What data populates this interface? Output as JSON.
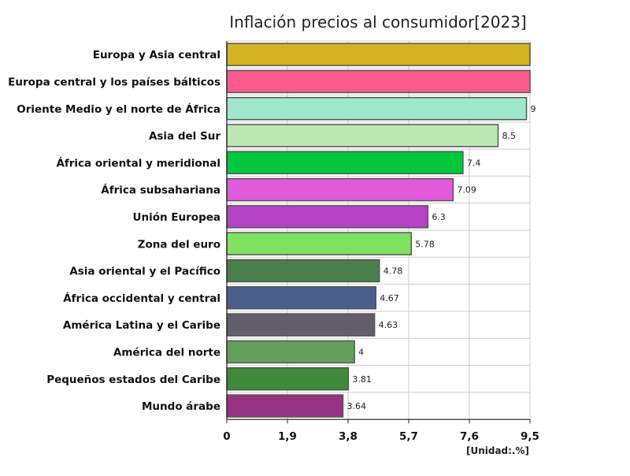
{
  "chart_data": {
    "type": "bar",
    "orientation": "horizontal",
    "title": "Inflación precios al consumidor[2023]",
    "unit_label": "[Unidad:.%]",
    "xlim": [
      0,
      9.5
    ],
    "x_ticks": [
      "0",
      "1,9",
      "3,8",
      "5,7",
      "7,6",
      "9,5"
    ],
    "x_tick_values": [
      0,
      1.9,
      3.8,
      5.7,
      7.6,
      9.5
    ],
    "grid": true,
    "categories": [
      "Europa y Asia central",
      "Europa central y los países bálticos",
      "Oriente Medio y el norte de África",
      "Asia del Sur",
      "África oriental y meridional",
      "África subsahariana",
      "Unión Europea",
      "Zona del euro",
      "Asia oriental y el Pacífico",
      "África occidental y central",
      "América Latina y el Caribe",
      "América del norte",
      "Pequeños estados del Caribe",
      "Mundo árabe"
    ],
    "values": [
      9.5,
      9.5,
      9.39,
      8.5,
      7.4,
      7.09,
      6.3,
      5.78,
      4.78,
      4.67,
      4.63,
      4,
      3.81,
      3.64
    ],
    "value_labels": [
      "",
      "",
      "9",
      "8.5",
      "7.4",
      "7.09",
      "6.3",
      "5.78",
      "4.78",
      "4.67",
      "4.63",
      "4",
      "3.81",
      "3.64"
    ],
    "colors": [
      "#d4b420",
      "#fa5a8c",
      "#a0e8cc",
      "#bce8b4",
      "#00c83c",
      "#e05adc",
      "#b444c4",
      "#7ee25e",
      "#4a7e4a",
      "#4a5e8c",
      "#625e6c",
      "#64a05a",
      "#3c8a3a",
      "#963282"
    ]
  }
}
